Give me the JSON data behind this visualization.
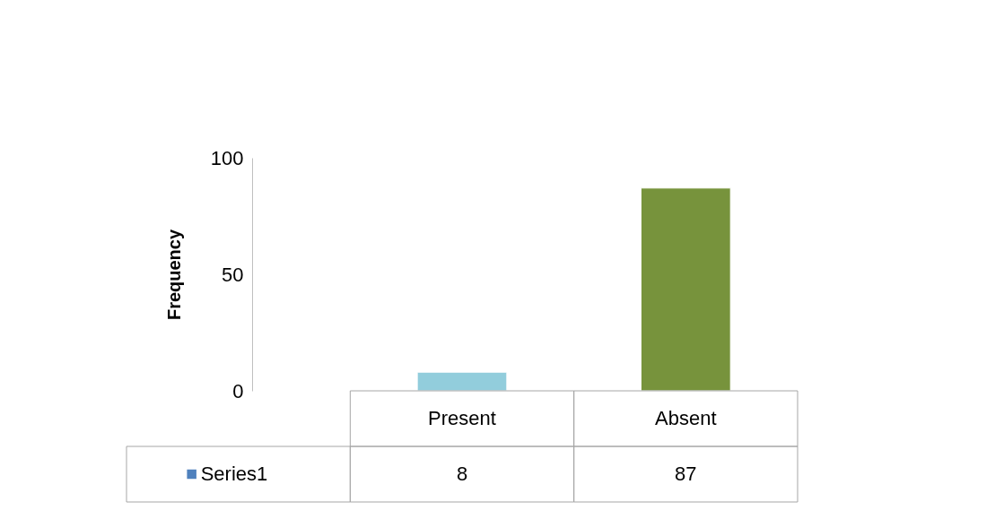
{
  "chart_data": {
    "type": "bar",
    "ylabel": "Frequency",
    "categories": [
      "Present",
      "Absent"
    ],
    "series": [
      {
        "name": "Series1",
        "color": "#4f81bd",
        "colors": [
          "#92cddc",
          "#77933c"
        ],
        "values": [
          8,
          87
        ]
      }
    ],
    "ylim": [
      0,
      100
    ],
    "yticks": [
      0,
      50,
      100
    ],
    "data_labels": true,
    "legend": "bottom left"
  }
}
